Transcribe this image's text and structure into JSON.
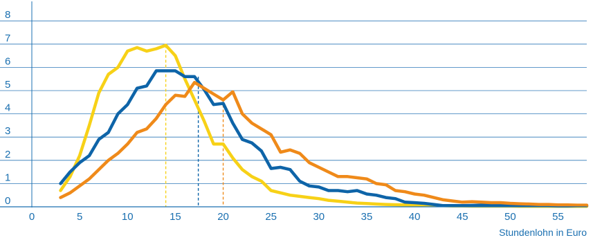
{
  "chart_data": {
    "type": "line",
    "title": "",
    "xlabel": "Stundenlohn in Euro",
    "ylabel": "",
    "xlim": [
      0,
      58
    ],
    "ylim": [
      0,
      8
    ],
    "xticks": [
      0,
      5,
      10,
      15,
      20,
      25,
      30,
      35,
      40,
      45,
      50,
      55
    ],
    "yticks": [
      0,
      1,
      2,
      3,
      4,
      5,
      6,
      7,
      8
    ],
    "grid": "horizontal",
    "legend": "none",
    "series": [
      {
        "color": "#f7d117",
        "x": [
          3,
          4,
          5,
          6,
          7,
          8,
          9,
          10,
          11,
          12,
          13,
          14,
          15,
          16,
          17,
          18,
          19,
          20,
          21,
          22,
          23,
          24,
          25,
          26,
          27,
          28,
          29,
          30,
          31,
          32,
          33,
          34,
          35,
          36,
          37,
          38,
          39,
          40,
          41,
          42,
          43,
          44,
          45,
          46,
          47,
          48,
          49,
          50,
          51,
          52,
          53,
          54,
          55,
          56,
          57,
          58
        ],
        "values": [
          0.7,
          1.3,
          2.2,
          3.5,
          4.9,
          5.7,
          6.0,
          6.7,
          6.85,
          6.7,
          6.8,
          6.95,
          6.5,
          5.5,
          4.6,
          3.7,
          2.7,
          2.7,
          2.1,
          1.6,
          1.3,
          1.1,
          0.7,
          0.6,
          0.5,
          0.45,
          0.4,
          0.35,
          0.28,
          0.24,
          0.2,
          0.16,
          0.14,
          0.12,
          0.1,
          0.09,
          0.08,
          0.07,
          0.06,
          0.05,
          0.05,
          0.04,
          0.04,
          0.03,
          0.03,
          0.03,
          0.03,
          0.03,
          0.02,
          0.02,
          0.02,
          0.02,
          0.02,
          0.02,
          0.02,
          0.02
        ]
      },
      {
        "color": "#0e64a8",
        "x": [
          3,
          4,
          5,
          6,
          7,
          8,
          9,
          10,
          11,
          12,
          13,
          14,
          15,
          16,
          17,
          18,
          19,
          20,
          21,
          22,
          23,
          24,
          25,
          26,
          27,
          28,
          29,
          30,
          31,
          32,
          33,
          34,
          35,
          36,
          37,
          38,
          39,
          40,
          41,
          42,
          43,
          44,
          45,
          46,
          47,
          48,
          49,
          50,
          51,
          52,
          53,
          54,
          55,
          56,
          57,
          58
        ],
        "values": [
          1.0,
          1.5,
          1.9,
          2.2,
          2.9,
          3.2,
          4.0,
          4.4,
          5.1,
          5.2,
          5.85,
          5.85,
          5.85,
          5.6,
          5.6,
          5.05,
          4.4,
          4.45,
          3.6,
          2.9,
          2.75,
          2.4,
          1.65,
          1.7,
          1.6,
          1.1,
          0.9,
          0.85,
          0.7,
          0.7,
          0.65,
          0.7,
          0.55,
          0.5,
          0.4,
          0.35,
          0.2,
          0.18,
          0.15,
          0.1,
          0.05,
          0.05,
          0.05,
          0.06,
          0.07,
          0.07,
          0.07,
          0.06,
          0.06,
          0.05,
          0.05,
          0.05,
          0.04,
          0.04,
          0.05,
          0.05
        ]
      },
      {
        "color": "#ef8a1a",
        "x": [
          3,
          4,
          5,
          6,
          7,
          8,
          9,
          10,
          11,
          12,
          13,
          14,
          15,
          16,
          17,
          18,
          19,
          20,
          21,
          22,
          23,
          24,
          25,
          26,
          27,
          28,
          29,
          30,
          31,
          32,
          33,
          34,
          35,
          36,
          37,
          38,
          39,
          40,
          41,
          42,
          43,
          44,
          45,
          46,
          47,
          48,
          49,
          50,
          51,
          52,
          53,
          54,
          55,
          56,
          57,
          58
        ],
        "values": [
          0.4,
          0.6,
          0.9,
          1.2,
          1.6,
          2.0,
          2.3,
          2.7,
          3.2,
          3.35,
          3.8,
          4.4,
          4.8,
          4.75,
          5.35,
          5.1,
          4.85,
          4.6,
          4.95,
          4.0,
          3.6,
          3.35,
          3.1,
          2.35,
          2.45,
          2.3,
          1.9,
          1.7,
          1.5,
          1.3,
          1.3,
          1.25,
          1.2,
          1.0,
          0.95,
          0.7,
          0.65,
          0.55,
          0.5,
          0.4,
          0.3,
          0.25,
          0.2,
          0.22,
          0.2,
          0.18,
          0.18,
          0.15,
          0.13,
          0.12,
          0.1,
          0.1,
          0.08,
          0.08,
          0.07,
          0.07
        ]
      }
    ],
    "reference_lines": [
      {
        "x": 14,
        "y_top": 6.95,
        "color": "#f7d117"
      },
      {
        "x": 17.4,
        "y_top": 5.6,
        "color": "#0e64a8"
      },
      {
        "x": 20,
        "y_top": 4.6,
        "color": "#ef8a1a"
      }
    ]
  }
}
